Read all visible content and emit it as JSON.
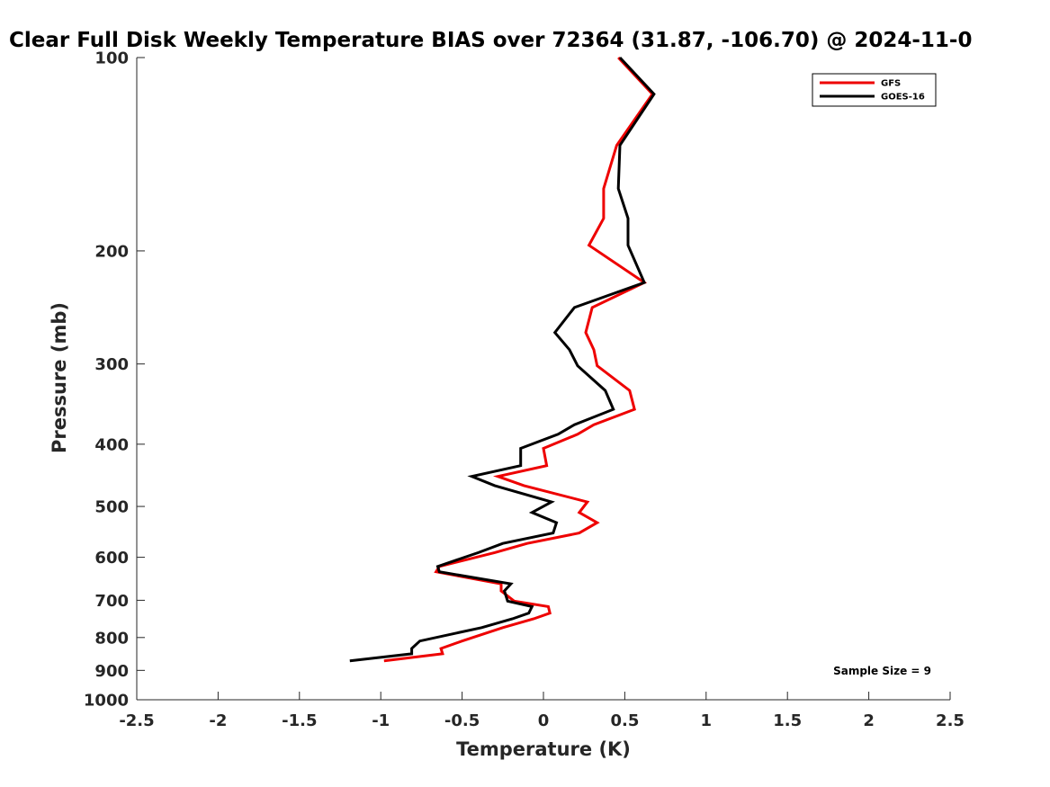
{
  "chart_data": {
    "type": "line",
    "title": "Clear Full Disk Weekly Temperature BIAS over 72364 (31.87, -106.70) @ 2024-11-0",
    "xlabel": "Temperature (K)",
    "ylabel": "Pressure (mb)",
    "xlim": [
      -2.5,
      2.5
    ],
    "ylim": [
      1000,
      100
    ],
    "y_scale": "log",
    "y_reversed": true,
    "x_ticks": [
      -2.5,
      -2,
      -1.5,
      -1,
      -0.5,
      0,
      0.5,
      1,
      1.5,
      2,
      2.5
    ],
    "x_tick_labels": [
      "-2.5",
      "-2",
      "-1.5",
      "-1",
      "-0.5",
      "0",
      "0.5",
      "1",
      "1.5",
      "2",
      "2.5"
    ],
    "y_ticks": [
      100,
      200,
      300,
      400,
      500,
      600,
      700,
      800,
      900,
      1000
    ],
    "y_tick_labels": [
      "100",
      "200",
      "300",
      "400",
      "500",
      "600",
      "700",
      "800",
      "900",
      "1000"
    ],
    "grid": false,
    "legend_position": "top-right",
    "annotation": "Sample Size = 9",
    "series": [
      {
        "name": "GFS",
        "color": "#ee0000",
        "points": [
          [
            0.46,
            100
          ],
          [
            0.67,
            114
          ],
          [
            0.45,
            137
          ],
          [
            0.37,
            160
          ],
          [
            0.37,
            178
          ],
          [
            0.28,
            196
          ],
          [
            0.62,
            224
          ],
          [
            0.3,
            245
          ],
          [
            0.26,
            268
          ],
          [
            0.31,
            285
          ],
          [
            0.33,
            302
          ],
          [
            0.53,
            330
          ],
          [
            0.56,
            353
          ],
          [
            0.31,
            373
          ],
          [
            0.21,
            386
          ],
          [
            0.0,
            406
          ],
          [
            0.02,
            432
          ],
          [
            -0.28,
            449
          ],
          [
            -0.12,
            464
          ],
          [
            0.27,
            492
          ],
          [
            0.22,
            511
          ],
          [
            0.33,
            530
          ],
          [
            0.22,
            550
          ],
          [
            -0.1,
            571
          ],
          [
            -0.3,
            590
          ],
          [
            -0.64,
            620
          ],
          [
            -0.66,
            632
          ],
          [
            -0.26,
            660
          ],
          [
            -0.26,
            677
          ],
          [
            -0.18,
            702
          ],
          [
            0.03,
            716
          ],
          [
            0.04,
            733
          ],
          [
            -0.06,
            748
          ],
          [
            -0.25,
            772
          ],
          [
            -0.5,
            810
          ],
          [
            -0.63,
            832
          ],
          [
            -0.62,
            848
          ],
          [
            -0.98,
            870
          ]
        ]
      },
      {
        "name": "GOES-16",
        "color": "#000000",
        "points": [
          [
            0.47,
            100
          ],
          [
            0.68,
            114
          ],
          [
            0.47,
            137
          ],
          [
            0.46,
            160
          ],
          [
            0.52,
            178
          ],
          [
            0.52,
            196
          ],
          [
            0.62,
            224
          ],
          [
            0.19,
            245
          ],
          [
            0.07,
            268
          ],
          [
            0.16,
            285
          ],
          [
            0.21,
            302
          ],
          [
            0.38,
            330
          ],
          [
            0.43,
            353
          ],
          [
            0.19,
            373
          ],
          [
            0.09,
            386
          ],
          [
            -0.14,
            406
          ],
          [
            -0.14,
            432
          ],
          [
            -0.44,
            449
          ],
          [
            -0.3,
            464
          ],
          [
            0.05,
            492
          ],
          [
            -0.07,
            511
          ],
          [
            0.08,
            530
          ],
          [
            0.06,
            550
          ],
          [
            -0.25,
            571
          ],
          [
            -0.4,
            590
          ],
          [
            -0.65,
            620
          ],
          [
            -0.64,
            632
          ],
          [
            -0.2,
            660
          ],
          [
            -0.24,
            677
          ],
          [
            -0.22,
            702
          ],
          [
            -0.07,
            716
          ],
          [
            -0.09,
            733
          ],
          [
            -0.19,
            748
          ],
          [
            -0.38,
            772
          ],
          [
            -0.76,
            810
          ],
          [
            -0.81,
            832
          ],
          [
            -0.81,
            848
          ],
          [
            -1.19,
            870
          ]
        ]
      }
    ]
  }
}
